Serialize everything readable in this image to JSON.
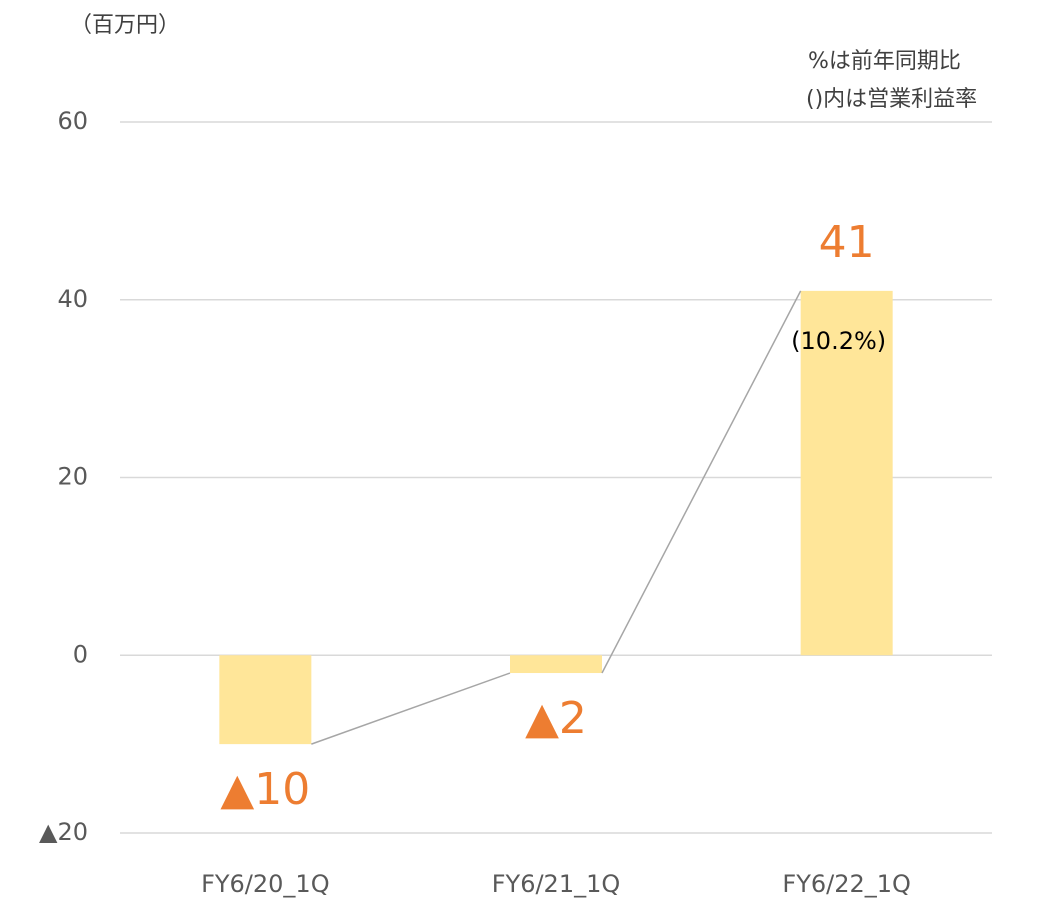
{
  "chart_data": {
    "type": "bar",
    "unit": "（百万円）",
    "notes": [
      "%は前年同期比",
      "()内は営業利益率"
    ],
    "categories": [
      "FY6/20_1Q",
      "FY6/21_1Q",
      "FY6/22_1Q"
    ],
    "values": [
      -10,
      -2,
      41
    ],
    "value_labels": [
      "▲10",
      "▲2",
      "41"
    ],
    "annotation": "(10.2%)",
    "color": "#ffe699",
    "label_color": "#ed7d31",
    "connector_color": "#a6a6a6",
    "ylim": [
      -20,
      60
    ],
    "yticks": [
      {
        "value": -20,
        "label": "▲20"
      },
      0,
      20,
      40,
      60
    ],
    "grid": true
  }
}
